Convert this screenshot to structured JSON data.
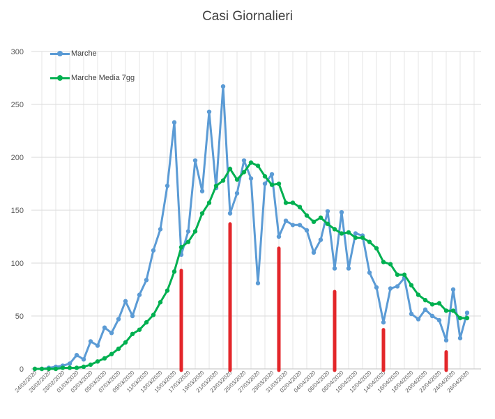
{
  "chart_data": {
    "type": "line",
    "title": "Casi Giornalieri",
    "ylim": [
      0,
      300
    ],
    "yticks": [
      0,
      50,
      100,
      150,
      200,
      250,
      300
    ],
    "grid": true,
    "legend_position": "top-left",
    "x": [
      "24/02/2020",
      "25/02/2020",
      "26/02/2020",
      "27/02/2020",
      "28/02/2020",
      "29/02/2020",
      "01/03/2020",
      "02/03/2020",
      "03/03/2020",
      "04/03/2020",
      "05/03/2020",
      "06/03/2020",
      "07/03/2020",
      "08/03/2020",
      "09/03/2020",
      "10/03/2020",
      "11/03/2020",
      "12/03/2020",
      "13/03/2020",
      "14/03/2020",
      "15/03/2020",
      "16/03/2020",
      "17/03/2020",
      "18/03/2020",
      "19/03/2020",
      "20/03/2020",
      "21/03/2020",
      "22/03/2020",
      "23/03/2020",
      "24/03/2020",
      "25/03/2020",
      "26/03/2020",
      "27/03/2020",
      "28/03/2020",
      "29/03/2020",
      "30/03/2020",
      "31/03/2020",
      "01/04/2020",
      "02/04/2020",
      "03/04/2020",
      "04/04/2020",
      "05/04/2020",
      "06/04/2020",
      "07/04/2020",
      "08/04/2020",
      "09/04/2020",
      "10/04/2020",
      "11/04/2020",
      "12/04/2020",
      "13/04/2020",
      "14/04/2020",
      "15/04/2020",
      "16/04/2020",
      "17/04/2020",
      "18/04/2020",
      "19/04/2020",
      "20/04/2020",
      "21/04/2020",
      "22/04/2020",
      "23/04/2020",
      "24/04/2020",
      "25/04/2020",
      "26/04/2020"
    ],
    "xtick_labels": [
      "24/02/2020",
      "26/02/2020",
      "28/02/2020",
      "01/03/2020",
      "03/03/2020",
      "05/03/2020",
      "07/03/2020",
      "09/03/2020",
      "11/03/2020",
      "13/03/2020",
      "15/03/2020",
      "17/03/2020",
      "19/03/2020",
      "21/03/2020",
      "23/03/2020",
      "25/03/2020",
      "27/03/2020",
      "29/03/2020",
      "31/03/2020",
      "02/04/2020",
      "04/04/2020",
      "06/04/2020",
      "08/04/2020",
      "10/04/2020",
      "12/04/2020",
      "14/04/2020",
      "16/04/2020",
      "18/04/2020",
      "20/04/2020",
      "22/04/2020",
      "24/04/2020",
      "26/04/2020"
    ],
    "series": [
      {
        "name": "Marche",
        "color": "#5b9bd5",
        "values": [
          0,
          0,
          1,
          2,
          3,
          5,
          13,
          9,
          26,
          22,
          39,
          34,
          47,
          64,
          50,
          70,
          84,
          112,
          132,
          173,
          233,
          108,
          130,
          197,
          168,
          243,
          171,
          267,
          147,
          166,
          197,
          180,
          81,
          175,
          184,
          125,
          140,
          136,
          136,
          131,
          110,
          122,
          149,
          95,
          148,
          95,
          128,
          126,
          91,
          77,
          44,
          76,
          78,
          86,
          52,
          47,
          56,
          50,
          46,
          27,
          75,
          29,
          53
        ]
      },
      {
        "name": "Marche Media 7gg",
        "color": "#00b050",
        "values": [
          0,
          0,
          0,
          0,
          1,
          1,
          1,
          2,
          4,
          7,
          10,
          14,
          19,
          25,
          33,
          37,
          44,
          51,
          63,
          74,
          92,
          115,
          120,
          130,
          147,
          157,
          173,
          178,
          189,
          179,
          186,
          195,
          192,
          182,
          174,
          175,
          157,
          157,
          153,
          145,
          139,
          143,
          137,
          132,
          128,
          129,
          124,
          124,
          120,
          114,
          101,
          99,
          89,
          89,
          79,
          70,
          65,
          61,
          62,
          55,
          55,
          48,
          48
        ]
      },
      {
        "name": "",
        "color": "#e3262a",
        "type": "markers",
        "values": [
          null,
          null,
          null,
          null,
          null,
          null,
          null,
          null,
          null,
          null,
          null,
          null,
          null,
          null,
          null,
          null,
          null,
          null,
          null,
          null,
          null,
          93,
          null,
          null,
          null,
          null,
          null,
          null,
          137,
          null,
          null,
          null,
          null,
          null,
          null,
          114,
          null,
          null,
          null,
          null,
          null,
          null,
          null,
          73,
          null,
          null,
          null,
          null,
          null,
          null,
          37,
          null,
          null,
          null,
          null,
          null,
          null,
          null,
          null,
          16,
          null,
          null,
          null
        ]
      }
    ]
  }
}
